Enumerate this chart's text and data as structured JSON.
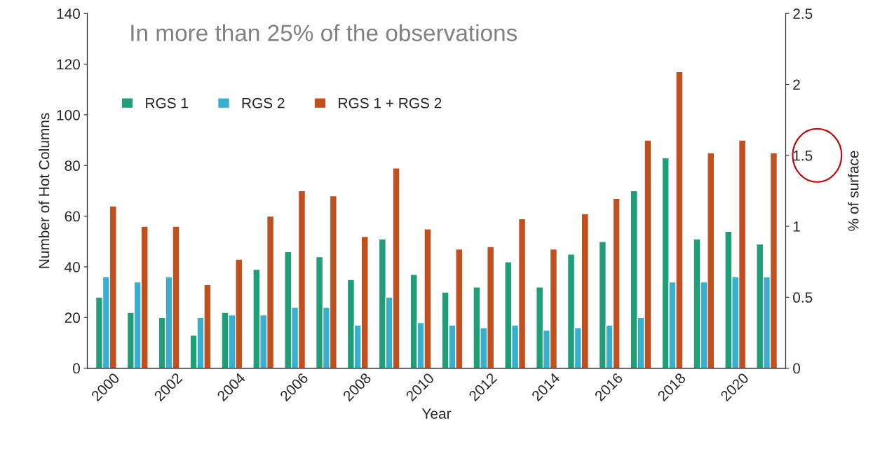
{
  "chart_data": {
    "type": "bar",
    "title": "In more than 25% of the observations",
    "xlabel": "Year",
    "ylabel": "Number of Hot Columns",
    "y2label": "% of surface",
    "categories": [
      "2000",
      null,
      "2002",
      null,
      "2004",
      null,
      "2006",
      null,
      "2008",
      null,
      "2010",
      null,
      "2012",
      null,
      "2014",
      null,
      "2016",
      null,
      "2018",
      null,
      "2020",
      null
    ],
    "series": [
      {
        "name": "RGS 1",
        "color": "#1f9e77",
        "values": [
          28,
          22,
          20,
          13,
          22,
          39,
          46,
          44,
          35,
          51,
          37,
          30,
          32,
          42,
          32,
          45,
          50,
          70,
          83,
          51,
          54,
          49
        ]
      },
      {
        "name": "RGS 2",
        "color": "#38afce",
        "values": [
          36,
          34,
          36,
          20,
          21,
          21,
          24,
          24,
          17,
          28,
          18,
          17,
          16,
          17,
          15,
          16,
          17,
          20,
          34,
          34,
          36,
          36
        ]
      },
      {
        "name": "RGS 1 + RGS 2",
        "color": "#c0501f",
        "values": [
          64,
          56,
          56,
          33,
          43,
          60,
          70,
          68,
          52,
          79,
          55,
          47,
          48,
          59,
          47,
          61,
          67,
          90,
          117,
          85,
          90,
          85
        ]
      }
    ],
    "ylim": [
      0,
      140
    ],
    "yticks": [
      0,
      20,
      40,
      60,
      80,
      100,
      120,
      140
    ],
    "y2lim": [
      0,
      2.5
    ],
    "y2ticks": [
      0,
      0.5,
      1,
      1.5,
      2,
      2.5
    ],
    "legend": "top left",
    "grid": false
  }
}
